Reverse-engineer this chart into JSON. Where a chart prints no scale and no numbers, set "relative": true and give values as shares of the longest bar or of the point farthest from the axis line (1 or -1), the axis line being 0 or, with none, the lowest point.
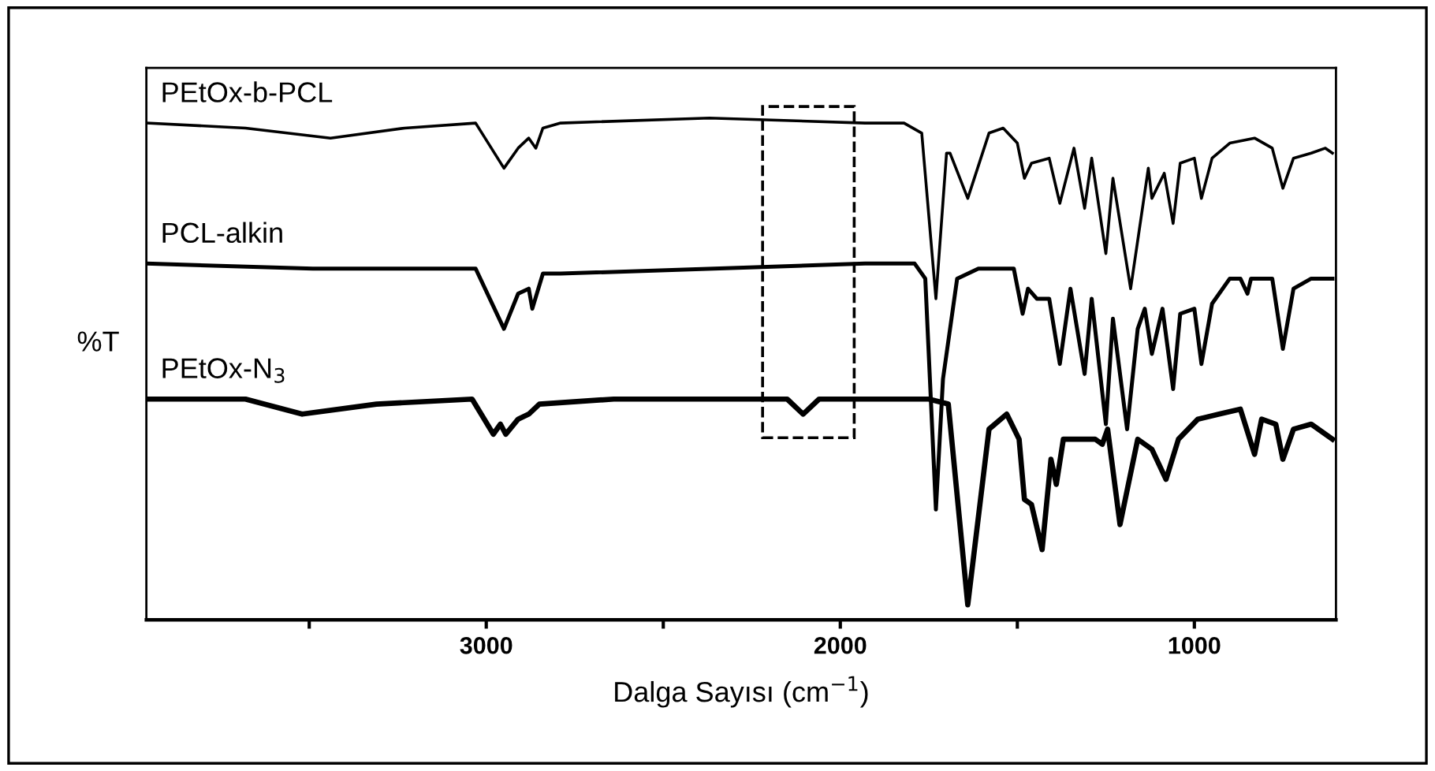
{
  "chart_data": {
    "type": "line",
    "relative": true,
    "xlabel": "Dalga Sayısı (cm$^{−1}$)",
    "ylabel": "%T",
    "xlim": [
      3960,
      600
    ],
    "xticks": [
      {
        "value": 3500,
        "label": null
      },
      3000,
      {
        "value": 2500,
        "label": null
      },
      2000,
      {
        "value": 1500,
        "label": null
      },
      1000
    ],
    "tick_labels": "x",
    "grid": false,
    "marker": "none",
    "line_style": "solid",
    "series": [
      {
        "name": "PEtOx-b-PCL",
        "color": "#000000",
        "x": [
          3960,
          3680,
          3440,
          3230,
          3030,
          2950,
          2910,
          2880,
          2860,
          2840,
          2790,
          2370,
          1930,
          1820,
          1770,
          1730,
          1700,
          1690,
          1640,
          1580,
          1540,
          1500,
          1480,
          1460,
          1410,
          1380,
          1340,
          1310,
          1290,
          1250,
          1230,
          1180,
          1130,
          1120,
          1085,
          1060,
          1040,
          1000,
          980,
          950,
          900,
          830,
          780,
          750,
          720,
          670,
          630,
          610
        ],
        "values": [
          0.99,
          0.98,
          0.96,
          0.98,
          0.99,
          0.9,
          0.94,
          0.96,
          0.94,
          0.98,
          0.99,
          1.0,
          0.99,
          0.99,
          0.97,
          0.64,
          0.93,
          0.93,
          0.84,
          0.97,
          0.98,
          0.95,
          0.88,
          0.91,
          0.92,
          0.83,
          0.94,
          0.82,
          0.92,
          0.73,
          0.88,
          0.66,
          0.9,
          0.84,
          0.89,
          0.79,
          0.91,
          0.92,
          0.84,
          0.92,
          0.95,
          0.96,
          0.94,
          0.86,
          0.92,
          0.93,
          0.94,
          0.93
        ]
      },
      {
        "name": "PCL-alkin",
        "color": "#000000",
        "x": [
          3960,
          3490,
          3030,
          2950,
          2910,
          2880,
          2870,
          2840,
          2790,
          1930,
          1790,
          1760,
          1730,
          1710,
          1670,
          1610,
          1510,
          1485,
          1470,
          1445,
          1410,
          1380,
          1350,
          1310,
          1290,
          1250,
          1230,
          1190,
          1160,
          1140,
          1120,
          1090,
          1060,
          1040,
          1000,
          980,
          950,
          900,
          870,
          850,
          840,
          780,
          750,
          720,
          670,
          610
        ],
        "values": [
          0.71,
          0.7,
          0.7,
          0.58,
          0.65,
          0.66,
          0.62,
          0.69,
          0.69,
          0.71,
          0.71,
          0.68,
          0.22,
          0.48,
          0.68,
          0.7,
          0.7,
          0.61,
          0.66,
          0.64,
          0.64,
          0.51,
          0.66,
          0.49,
          0.64,
          0.39,
          0.6,
          0.38,
          0.58,
          0.62,
          0.53,
          0.62,
          0.46,
          0.61,
          0.62,
          0.51,
          0.63,
          0.68,
          0.68,
          0.65,
          0.68,
          0.68,
          0.54,
          0.66,
          0.68,
          0.68
        ]
      },
      {
        "name": "PEtOx-N$_{3}$",
        "color": "#000000",
        "x": [
          3960,
          3680,
          3520,
          3310,
          3040,
          2980,
          2960,
          2945,
          2910,
          2880,
          2850,
          2640,
          2150,
          2105,
          2060,
          1930,
          1750,
          1695,
          1640,
          1580,
          1530,
          1495,
          1480,
          1460,
          1430,
          1405,
          1390,
          1370,
          1330,
          1280,
          1260,
          1245,
          1210,
          1160,
          1120,
          1080,
          1045,
          990,
          930,
          870,
          830,
          810,
          770,
          750,
          720,
          670,
          610
        ],
        "values": [
          0.44,
          0.44,
          0.41,
          0.43,
          0.44,
          0.37,
          0.39,
          0.37,
          0.4,
          0.41,
          0.43,
          0.44,
          0.44,
          0.41,
          0.44,
          0.44,
          0.44,
          0.43,
          0.03,
          0.38,
          0.41,
          0.36,
          0.24,
          0.23,
          0.14,
          0.32,
          0.27,
          0.36,
          0.36,
          0.36,
          0.35,
          0.38,
          0.19,
          0.36,
          0.34,
          0.28,
          0.36,
          0.4,
          0.41,
          0.42,
          0.33,
          0.4,
          0.39,
          0.32,
          0.38,
          0.39,
          0.36
        ]
      }
    ]
  }
}
